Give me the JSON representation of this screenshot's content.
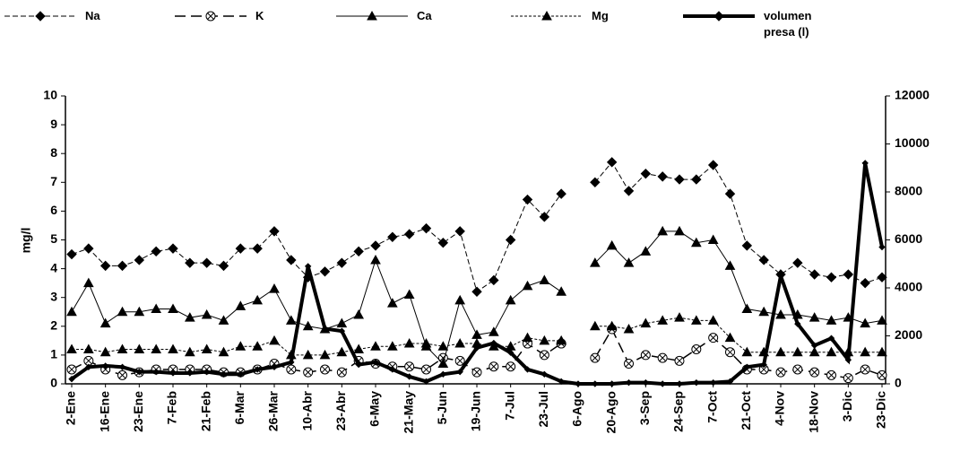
{
  "chart_data": {
    "type": "line",
    "y_label": "mg/l",
    "categories": [
      "2-Ene",
      null,
      "16-Ene",
      null,
      "23-Ene",
      null,
      "7-Feb",
      null,
      "21-Feb",
      null,
      "6-Mar",
      null,
      "26-Mar",
      null,
      "10-Abr",
      null,
      "23-Abr",
      null,
      "6-May",
      null,
      "21-May",
      null,
      "5-Jun",
      null,
      "19-Jun",
      null,
      "7-Jul",
      null,
      "23-Jul",
      null,
      "6-Ago",
      null,
      "20-Ago",
      null,
      "3-Sep",
      null,
      "24-Sep",
      null,
      "7-Oct",
      null,
      "21-Oct",
      null,
      "4-Nov",
      null,
      "18-Nov",
      null,
      "3-Dic",
      null,
      "23-Dic"
    ],
    "ylim": [
      0,
      10
    ],
    "yticks": [
      0,
      1,
      2,
      3,
      4,
      5,
      6,
      7,
      8,
      9,
      10
    ],
    "y2lim": [
      0,
      12000
    ],
    "y2ticks": [
      0,
      2000,
      4000,
      6000,
      8000,
      10000,
      12000
    ],
    "series": [
      {
        "name": "Na",
        "color": "#000000",
        "marker": "diamond",
        "dash": "6,3",
        "width": 1,
        "values": [
          4.5,
          4.7,
          4.1,
          4.1,
          4.3,
          4.6,
          4.7,
          4.2,
          4.2,
          4.1,
          4.7,
          4.7,
          5.3,
          4.3,
          3.7,
          3.9,
          4.2,
          4.6,
          4.8,
          5.1,
          5.2,
          5.4,
          4.9,
          5.3,
          3.2,
          3.6,
          5.0,
          6.4,
          5.8,
          6.6,
          null,
          7.0,
          7.7,
          6.7,
          7.3,
          7.2,
          7.1,
          7.1,
          7.6,
          6.6,
          4.8,
          4.3,
          3.8,
          4.2,
          3.8,
          3.7,
          3.8,
          3.5,
          3.7
        ]
      },
      {
        "name": "K",
        "color": "#000000",
        "marker": "crossed-circle",
        "dash": "12,6",
        "width": 1.5,
        "values": [
          0.5,
          0.8,
          0.5,
          0.3,
          0.4,
          0.5,
          0.5,
          0.5,
          0.5,
          0.4,
          0.4,
          0.5,
          0.7,
          0.5,
          0.4,
          0.5,
          0.4,
          0.8,
          0.7,
          0.6,
          0.6,
          0.5,
          0.9,
          0.8,
          0.4,
          0.6,
          0.6,
          1.4,
          1.0,
          1.4,
          null,
          0.9,
          1.9,
          0.7,
          1.0,
          0.9,
          0.8,
          1.2,
          1.6,
          1.1,
          0.5,
          0.5,
          0.4,
          0.5,
          0.4,
          0.3,
          0.2,
          0.5,
          0.3
        ]
      },
      {
        "name": "Ca",
        "color": "#000000",
        "marker": "triangle",
        "dash": "none",
        "width": 1,
        "values": [
          2.5,
          3.5,
          2.1,
          2.5,
          2.5,
          2.6,
          2.6,
          2.3,
          2.4,
          2.2,
          2.7,
          2.9,
          3.3,
          2.2,
          2.0,
          1.9,
          2.1,
          2.4,
          4.3,
          2.8,
          3.1,
          1.3,
          0.7,
          2.9,
          1.7,
          1.8,
          2.9,
          3.4,
          3.6,
          3.2,
          null,
          4.2,
          4.8,
          4.2,
          4.6,
          5.3,
          5.3,
          4.9,
          5.0,
          4.1,
          2.6,
          2.5,
          2.4,
          2.4,
          2.3,
          2.2,
          2.3,
          2.1,
          2.2
        ]
      },
      {
        "name": "Mg",
        "color": "#000000",
        "marker": "triangle",
        "dash": "3,2",
        "width": 1,
        "values": [
          1.2,
          1.2,
          1.1,
          1.2,
          1.2,
          1.2,
          1.2,
          1.1,
          1.2,
          1.1,
          1.3,
          1.3,
          1.5,
          1.0,
          1.0,
          1.0,
          1.1,
          1.2,
          1.3,
          1.3,
          1.4,
          1.4,
          1.3,
          1.4,
          1.4,
          1.3,
          1.3,
          1.6,
          1.5,
          1.5,
          null,
          2.0,
          2.0,
          1.9,
          2.1,
          2.2,
          2.3,
          2.2,
          2.2,
          1.6,
          1.1,
          1.1,
          1.1,
          1.1,
          1.1,
          1.1,
          1.1,
          1.1,
          1.1
        ]
      },
      {
        "name": "volumen presa (l)",
        "color": "#000000",
        "marker": "diamond",
        "dash": "none",
        "width": 4,
        "axis": "y2",
        "values": [
          200,
          700,
          750,
          700,
          500,
          500,
          450,
          450,
          500,
          400,
          400,
          600,
          700,
          900,
          4900,
          2300,
          2200,
          800,
          900,
          600,
          300,
          100,
          400,
          500,
          1500,
          1700,
          1300,
          600,
          400,
          100,
          0,
          0,
          0,
          50,
          50,
          0,
          0,
          50,
          50,
          100,
          700,
          800,
          4500,
          2500,
          1600,
          1900,
          1000,
          9200,
          5700
        ]
      }
    ]
  }
}
